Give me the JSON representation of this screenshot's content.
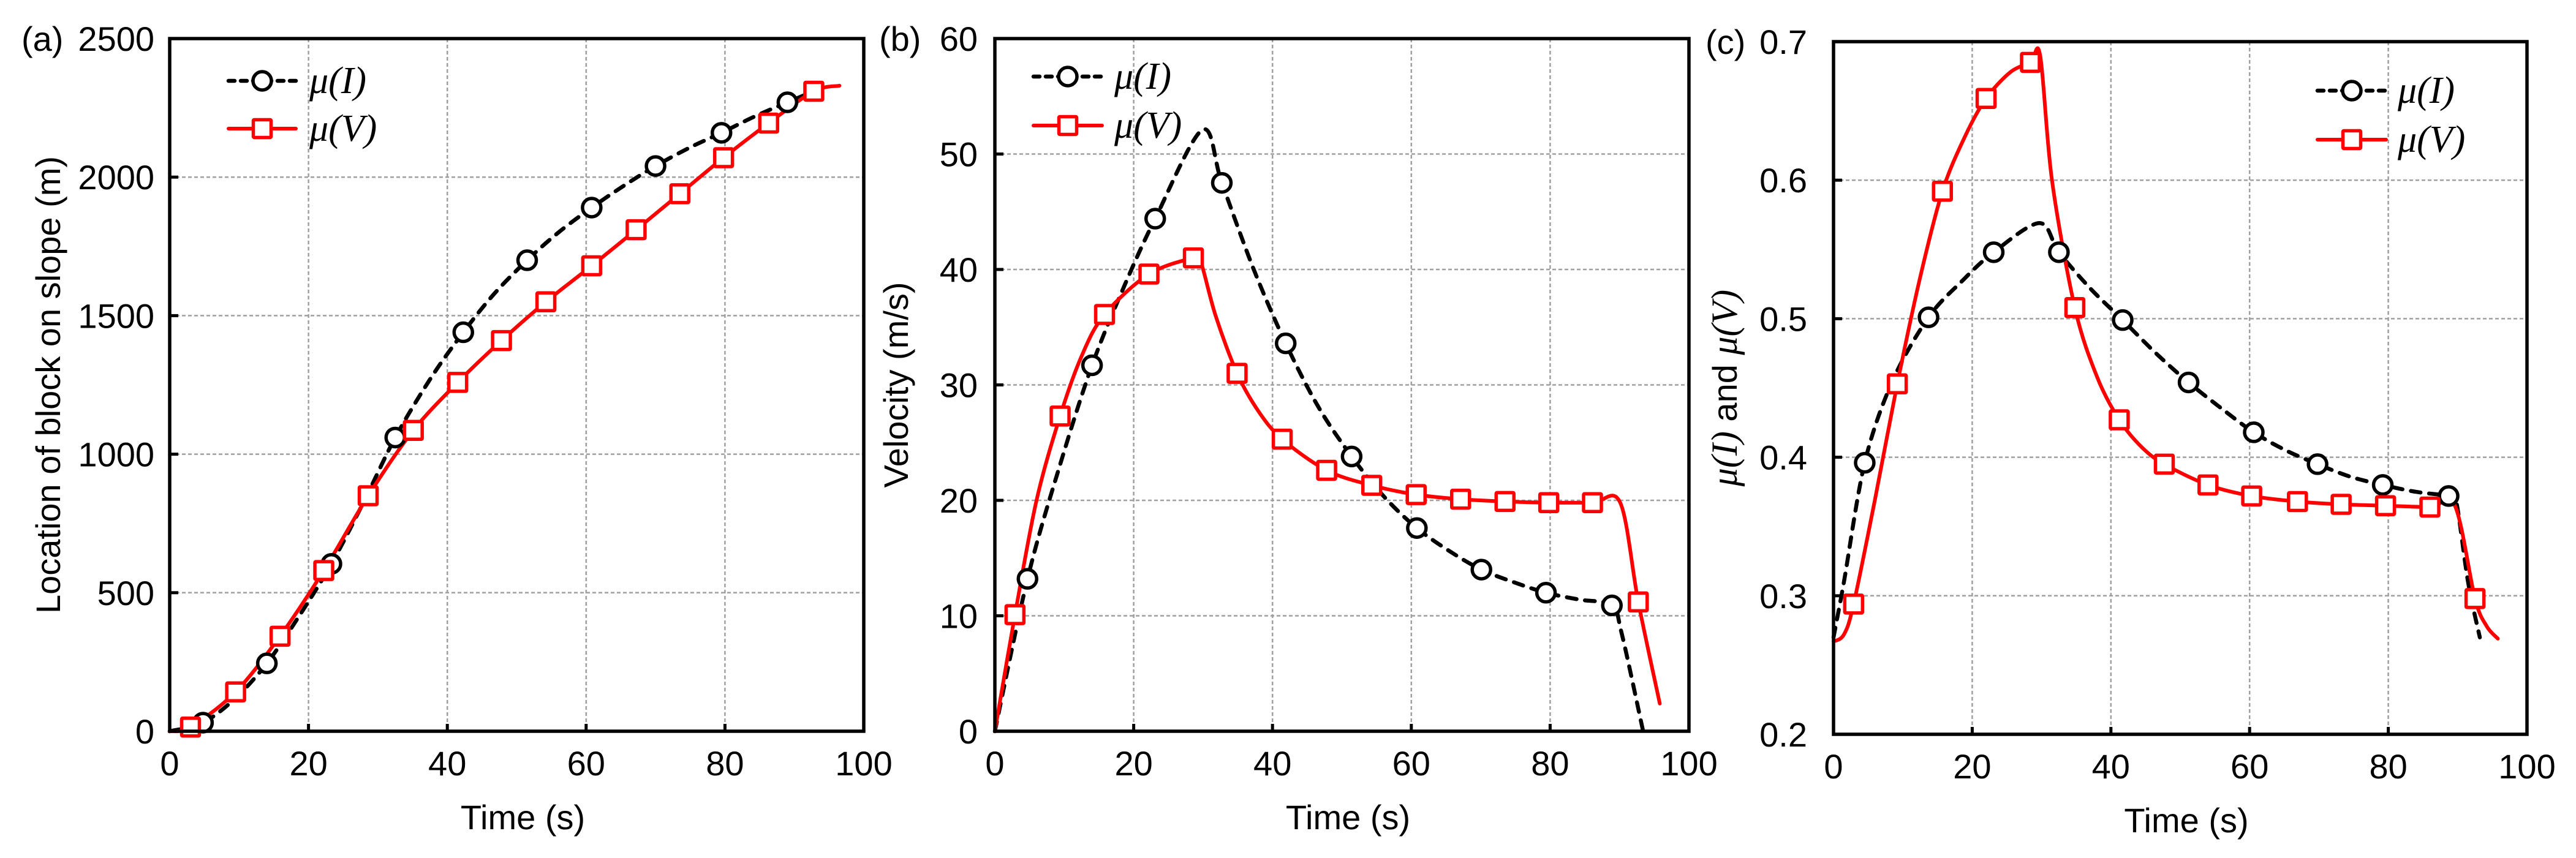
{
  "figure": {
    "series_names": {
      "mu_I": "μ(I)",
      "mu_V": "μ(V)"
    },
    "colors": {
      "mu_I": "#000000",
      "mu_V": "#ff0000",
      "grid": "#a0a0a0",
      "axis": "#000000"
    }
  },
  "chart_data": [
    {
      "panel_label": "(a)",
      "type": "line",
      "title": "",
      "xlabel": "Time (s)",
      "ylabel": "Location of block on slope (m)",
      "xlim": [
        0,
        100
      ],
      "ylim": [
        0,
        2500
      ],
      "xticks": [
        0,
        20,
        40,
        60,
        80,
        100
      ],
      "yticks": [
        0,
        500,
        1000,
        1500,
        2000,
        2500
      ],
      "xtick_labels": [
        "0",
        "20",
        "40",
        "60",
        "80",
        "100"
      ],
      "ytick_labels": [
        "0",
        "500",
        "1000",
        "1500",
        "2000",
        "2500"
      ],
      "grid": true,
      "legend": {
        "position": "top-left",
        "entries": [
          "μ(I)",
          "μ(V)"
        ]
      },
      "series": [
        {
          "name": "μ(I)",
          "style": "dashed",
          "marker": "circle",
          "markers": [
            [
              4.8,
              31
            ],
            [
              14.0,
              245
            ],
            [
              23.3,
              604
            ],
            [
              32.5,
              1060
            ],
            [
              42.3,
              1440
            ],
            [
              51.5,
              1700
            ],
            [
              60.8,
              1890
            ],
            [
              70.0,
              2040
            ],
            [
              79.5,
              2160
            ],
            [
              89.0,
              2270
            ]
          ],
          "curve": [
            [
              0,
              0
            ],
            [
              4.8,
              31
            ],
            [
              9.5,
              120
            ],
            [
              14.0,
              245
            ],
            [
              18.5,
              410
            ],
            [
              23.3,
              604
            ],
            [
              28.0,
              830
            ],
            [
              32.5,
              1060
            ],
            [
              37.5,
              1270
            ],
            [
              42.3,
              1440
            ],
            [
              46.8,
              1580
            ],
            [
              51.5,
              1700
            ],
            [
              56.0,
              1800
            ],
            [
              60.8,
              1890
            ],
            [
              65.5,
              1970
            ],
            [
              70.0,
              2040
            ],
            [
              74.8,
              2105
            ],
            [
              79.5,
              2160
            ],
            [
              84.2,
              2218
            ],
            [
              89.0,
              2270
            ],
            [
              92.8,
              2310
            ]
          ]
        },
        {
          "name": "μ(V)",
          "style": "solid",
          "marker": "square",
          "markers": [
            [
              3.0,
              15
            ],
            [
              9.5,
              142
            ],
            [
              15.9,
              343
            ],
            [
              22.2,
              580
            ],
            [
              28.6,
              850
            ],
            [
              35.1,
              1086
            ],
            [
              41.5,
              1259
            ],
            [
              47.8,
              1410
            ],
            [
              54.2,
              1550
            ],
            [
              60.8,
              1680
            ],
            [
              67.2,
              1810
            ],
            [
              73.5,
              1940
            ],
            [
              79.8,
              2070
            ],
            [
              86.3,
              2195
            ],
            [
              92.8,
              2310
            ]
          ],
          "curve": [
            [
              0,
              0
            ],
            [
              3.0,
              15
            ],
            [
              9.5,
              142
            ],
            [
              15.9,
              343
            ],
            [
              22.2,
              580
            ],
            [
              28.6,
              850
            ],
            [
              35.1,
              1086
            ],
            [
              41.5,
              1259
            ],
            [
              47.8,
              1410
            ],
            [
              54.2,
              1550
            ],
            [
              60.8,
              1680
            ],
            [
              67.2,
              1810
            ],
            [
              73.5,
              1940
            ],
            [
              79.8,
              2070
            ],
            [
              86.3,
              2195
            ],
            [
              92.8,
              2310
            ],
            [
              96.5,
              2330
            ]
          ]
        }
      ]
    },
    {
      "panel_label": "(b)",
      "type": "line",
      "title": "",
      "xlabel": "Time (s)",
      "ylabel": "Velocity (m/s)",
      "xlim": [
        0,
        100
      ],
      "ylim": [
        0,
        60
      ],
      "xticks": [
        0,
        20,
        40,
        60,
        80,
        100
      ],
      "yticks": [
        0,
        10,
        20,
        30,
        40,
        50,
        60
      ],
      "xtick_labels": [
        "0",
        "20",
        "40",
        "60",
        "80",
        "100"
      ],
      "ytick_labels": [
        "0",
        "10",
        "20",
        "30",
        "40",
        "50",
        "60"
      ],
      "grid": true,
      "legend": {
        "position": "top-left",
        "entries": [
          "μ(I)",
          "μ(V)"
        ]
      },
      "series": [
        {
          "name": "μ(I)",
          "style": "dashed",
          "marker": "circle",
          "markers": [
            [
              4.7,
              13.2
            ],
            [
              14.0,
              31.7
            ],
            [
              23.1,
              44.4
            ],
            [
              32.7,
              47.5
            ],
            [
              41.9,
              33.6
            ],
            [
              51.4,
              23.8
            ],
            [
              60.8,
              17.6
            ],
            [
              70.1,
              14.0
            ],
            [
              79.4,
              12.0
            ],
            [
              88.9,
              10.9
            ]
          ],
          "curve": [
            [
              0,
              0
            ],
            [
              4.7,
              13.2
            ],
            [
              9.3,
              22.9
            ],
            [
              14.0,
              31.7
            ],
            [
              18.6,
              38.5
            ],
            [
              23.1,
              44.4
            ],
            [
              29.9,
              52.1
            ],
            [
              32.7,
              47.5
            ],
            [
              37.3,
              40.0
            ],
            [
              41.9,
              33.6
            ],
            [
              46.6,
              28.1
            ],
            [
              51.4,
              23.8
            ],
            [
              56.1,
              20.3
            ],
            [
              60.8,
              17.6
            ],
            [
              65.5,
              15.6
            ],
            [
              70.1,
              14.0
            ],
            [
              74.8,
              12.9
            ],
            [
              79.4,
              12.0
            ],
            [
              84.2,
              11.4
            ],
            [
              88.9,
              10.9
            ],
            [
              90.3,
              8.5
            ],
            [
              93.4,
              0
            ]
          ]
        },
        {
          "name": "μ(V)",
          "style": "solid",
          "marker": "square",
          "markers": [
            [
              2.9,
              10.1
            ],
            [
              9.4,
              27.3
            ],
            [
              15.8,
              36.1
            ],
            [
              22.2,
              39.6
            ],
            [
              28.6,
              41.0
            ],
            [
              34.9,
              31.0
            ],
            [
              41.4,
              25.3
            ],
            [
              47.8,
              22.6
            ],
            [
              54.3,
              21.3
            ],
            [
              60.7,
              20.5
            ],
            [
              67.1,
              20.1
            ],
            [
              73.5,
              19.9
            ],
            [
              79.8,
              19.8
            ],
            [
              86.1,
              19.8
            ],
            [
              92.7,
              11.2
            ]
          ],
          "curve": [
            [
              0,
              0
            ],
            [
              2.9,
              10.1
            ],
            [
              6.0,
              20.0
            ],
            [
              9.4,
              27.3
            ],
            [
              12.5,
              32.5
            ],
            [
              15.8,
              36.1
            ],
            [
              22.2,
              39.6
            ],
            [
              28.6,
              41.0
            ],
            [
              29.6,
              40.8
            ],
            [
              31.8,
              36.0
            ],
            [
              34.9,
              31.0
            ],
            [
              38.0,
              27.7
            ],
            [
              41.4,
              25.3
            ],
            [
              47.8,
              22.6
            ],
            [
              54.3,
              21.3
            ],
            [
              60.7,
              20.5
            ],
            [
              67.1,
              20.1
            ],
            [
              73.5,
              19.9
            ],
            [
              79.8,
              19.8
            ],
            [
              86.1,
              19.8
            ],
            [
              90.1,
              19.8
            ],
            [
              92.7,
              11.2
            ],
            [
              95.8,
              2.4
            ]
          ]
        }
      ]
    },
    {
      "panel_label": "(c)",
      "type": "line",
      "title": "",
      "xlabel": "Time (s)",
      "ylabel": "μ(I) and μ(V)",
      "xlim": [
        0,
        100
      ],
      "ylim": [
        0.2,
        0.7
      ],
      "xticks": [
        0,
        20,
        40,
        60,
        80,
        100
      ],
      "yticks": [
        0.2,
        0.3,
        0.4,
        0.5,
        0.6,
        0.7
      ],
      "xtick_labels": [
        "0",
        "20",
        "40",
        "60",
        "80",
        "100"
      ],
      "ytick_labels": [
        "0.2",
        "0.3",
        "0.4",
        "0.5",
        "0.6",
        "0.7"
      ],
      "grid": true,
      "legend": {
        "position": "top-right",
        "entries": [
          "μ(I)",
          "μ(V)"
        ]
      },
      "series": [
        {
          "name": "μ(I)",
          "style": "dashed",
          "marker": "circle",
          "markers": [
            [
              4.5,
              0.396
            ],
            [
              13.7,
              0.501
            ],
            [
              23.1,
              0.548
            ],
            [
              32.5,
              0.548
            ],
            [
              41.7,
              0.499
            ],
            [
              51.2,
              0.454
            ],
            [
              60.6,
              0.418
            ],
            [
              69.8,
              0.395
            ],
            [
              79.2,
              0.38
            ],
            [
              88.7,
              0.372
            ]
          ],
          "curve": [
            [
              0,
              0.27
            ],
            [
              1.5,
              0.31
            ],
            [
              4.5,
              0.396
            ],
            [
              8.5,
              0.455
            ],
            [
              13.7,
              0.501
            ],
            [
              18.5,
              0.527
            ],
            [
              23.1,
              0.548
            ],
            [
              29.7,
              0.569
            ],
            [
              32.5,
              0.548
            ],
            [
              37.0,
              0.522
            ],
            [
              41.7,
              0.499
            ],
            [
              46.5,
              0.475
            ],
            [
              51.2,
              0.454
            ],
            [
              56.0,
              0.435
            ],
            [
              60.6,
              0.418
            ],
            [
              65.2,
              0.405
            ],
            [
              69.8,
              0.395
            ],
            [
              74.5,
              0.386
            ],
            [
              79.2,
              0.38
            ],
            [
              84.0,
              0.375
            ],
            [
              88.7,
              0.372
            ],
            [
              89.8,
              0.368
            ],
            [
              91.5,
              0.31
            ],
            [
              93.2,
              0.27
            ]
          ]
        },
        {
          "name": "μ(V)",
          "style": "solid",
          "marker": "square",
          "markers": [
            [
              2.9,
              0.294
            ],
            [
              9.2,
              0.453
            ],
            [
              15.7,
              0.592
            ],
            [
              22.0,
              0.659
            ],
            [
              28.4,
              0.685
            ],
            [
              34.8,
              0.508
            ],
            [
              41.2,
              0.427
            ],
            [
              47.7,
              0.395
            ],
            [
              54.0,
              0.38
            ],
            [
              60.3,
              0.372
            ],
            [
              66.9,
              0.368
            ],
            [
              73.2,
              0.366
            ],
            [
              79.6,
              0.365
            ],
            [
              86.0,
              0.364
            ],
            [
              92.5,
              0.298
            ]
          ],
          "curve": [
            [
              0,
              0.267
            ],
            [
              1.5,
              0.272
            ],
            [
              2.9,
              0.294
            ],
            [
              6.0,
              0.37
            ],
            [
              9.2,
              0.453
            ],
            [
              12.5,
              0.53
            ],
            [
              15.7,
              0.592
            ],
            [
              19.0,
              0.632
            ],
            [
              22.0,
              0.659
            ],
            [
              25.5,
              0.678
            ],
            [
              28.4,
              0.685
            ],
            [
              29.8,
              0.69
            ],
            [
              31.5,
              0.6
            ],
            [
              34.8,
              0.508
            ],
            [
              38.0,
              0.458
            ],
            [
              41.2,
              0.427
            ],
            [
              44.5,
              0.407
            ],
            [
              47.7,
              0.395
            ],
            [
              54.0,
              0.38
            ],
            [
              60.3,
              0.372
            ],
            [
              66.9,
              0.368
            ],
            [
              73.2,
              0.366
            ],
            [
              79.6,
              0.365
            ],
            [
              86.0,
              0.364
            ],
            [
              89.6,
              0.365
            ],
            [
              92.5,
              0.298
            ],
            [
              94.2,
              0.278
            ],
            [
              95.8,
              0.269
            ]
          ]
        }
      ]
    }
  ]
}
